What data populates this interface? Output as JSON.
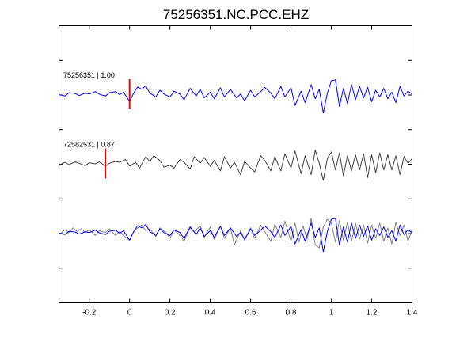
{
  "chart_data": {
    "type": "line",
    "title": "75256351.NC.PCC.EHZ",
    "xlabel": "",
    "ylabel": "",
    "xlim": [
      -0.35,
      1.4
    ],
    "x_ticks": [
      -0.2,
      0,
      0.2,
      0.4,
      0.6,
      0.8,
      1,
      1.2,
      1.4
    ],
    "x_tick_labels": [
      "-0.2",
      "0",
      "0.2",
      "0.4",
      "0.6",
      "0.8",
      "1",
      "1.2",
      "1.4"
    ],
    "y_tick_count": 7,
    "grid": false,
    "legend": "none",
    "traces": [
      {
        "label": "75256351 | 1.00",
        "color": "#0000ff",
        "pick_time": 0.0,
        "pick_color": "#ff0000",
        "x": [
          -0.35,
          -0.32,
          -0.3,
          -0.27,
          -0.25,
          -0.22,
          -0.2,
          -0.17,
          -0.15,
          -0.12,
          -0.1,
          -0.07,
          -0.05,
          -0.03,
          0,
          0.02,
          0.04,
          0.06,
          0.08,
          0.1,
          0.13,
          0.15,
          0.17,
          0.2,
          0.22,
          0.25,
          0.27,
          0.3,
          0.33,
          0.35,
          0.37,
          0.4,
          0.42,
          0.45,
          0.47,
          0.5,
          0.53,
          0.55,
          0.57,
          0.6,
          0.62,
          0.65,
          0.67,
          0.7,
          0.72,
          0.75,
          0.77,
          0.8,
          0.82,
          0.85,
          0.87,
          0.9,
          0.92,
          0.94,
          0.96,
          0.98,
          1,
          1.02,
          1.04,
          1.06,
          1.08,
          1.1,
          1.12,
          1.14,
          1.16,
          1.18,
          1.2,
          1.22,
          1.24,
          1.26,
          1.28,
          1.3,
          1.32,
          1.34,
          1.36,
          1.38,
          1.4
        ],
        "y": [
          0.02,
          -0.05,
          0.12,
          0.08,
          -0.03,
          0.1,
          0.05,
          0.18,
          0.04,
          -0.06,
          0.12,
          0.18,
          0.02,
          0.15,
          -0.35,
          0.1,
          0.42,
          0.3,
          0.48,
          0.1,
          -0.1,
          0.25,
          0.05,
          -0.1,
          0.2,
          0.05,
          -0.25,
          0.35,
          -0.05,
          0.3,
          -0.15,
          0.15,
          -0.2,
          0.38,
          -0.1,
          0.3,
          -0.15,
          0.05,
          -0.3,
          0.25,
          -0.1,
          0.18,
          0.4,
          0.1,
          -0.2,
          0.45,
          -0.1,
          0.38,
          -0.55,
          0.2,
          -0.4,
          0.55,
          -0.2,
          0.3,
          -0.95,
          0.1,
          0.75,
          0.8,
          -0.6,
          0.35,
          -0.45,
          0.55,
          -0.25,
          0.45,
          -0.15,
          0.4,
          -0.35,
          0.25,
          -0.1,
          0.35,
          -0.2,
          0.15,
          -0.4,
          0.45,
          -0.05,
          0.2,
          0.05
        ]
      },
      {
        "label": "72582531 | 0.87",
        "color": "#404040",
        "pick_time": -0.12,
        "pick_color": "#ff0000",
        "x": [
          -0.35,
          -0.32,
          -0.3,
          -0.27,
          -0.25,
          -0.22,
          -0.2,
          -0.17,
          -0.15,
          -0.12,
          -0.1,
          -0.07,
          -0.05,
          -0.02,
          0,
          0.03,
          0.05,
          0.08,
          0.1,
          0.12,
          0.15,
          0.17,
          0.2,
          0.22,
          0.25,
          0.27,
          0.3,
          0.32,
          0.35,
          0.37,
          0.4,
          0.42,
          0.45,
          0.47,
          0.5,
          0.52,
          0.55,
          0.57,
          0.6,
          0.62,
          0.65,
          0.67,
          0.7,
          0.72,
          0.75,
          0.77,
          0.8,
          0.82,
          0.85,
          0.87,
          0.9,
          0.92,
          0.94,
          0.96,
          0.98,
          1,
          1.02,
          1.04,
          1.06,
          1.08,
          1.1,
          1.12,
          1.14,
          1.16,
          1.18,
          1.2,
          1.22,
          1.24,
          1.26,
          1.28,
          1.3,
          1.32,
          1.34,
          1.36,
          1.38,
          1.4
        ],
        "y": [
          -0.05,
          0.1,
          -0.02,
          0.12,
          0.05,
          -0.08,
          0.08,
          0.02,
          0.12,
          -0.1,
          0.05,
          0.15,
          0.1,
          0.25,
          -0.1,
          0.1,
          -0.2,
          0.4,
          0.15,
          0.45,
          0.2,
          -0.15,
          -0.05,
          -0.2,
          0.25,
          0.1,
          -0.25,
          0.4,
          0.05,
          0.35,
          -0.1,
          0.2,
          -0.35,
          0.4,
          -0.2,
          0.1,
          -0.55,
          0.15,
          -0.2,
          -0.4,
          0.45,
          0.2,
          -0.35,
          0.4,
          -0.35,
          0.55,
          -0.2,
          0.7,
          -0.5,
          0.45,
          -0.55,
          0.75,
          0.05,
          -0.85,
          0.3,
          0.65,
          -0.3,
          0.6,
          -0.6,
          0.45,
          -0.35,
          0.5,
          -0.3,
          0.55,
          -0.7,
          0.5,
          -0.45,
          0.6,
          -0.3,
          0.5,
          -0.3,
          0.45,
          -0.55,
          0.4,
          0.05,
          0.3
        ]
      },
      {
        "label": "",
        "overlay": true,
        "series": [
          {
            "color": "#808080",
            "x": [
              -0.35,
              -0.32,
              -0.3,
              -0.28,
              -0.26,
              -0.24,
              -0.22,
              -0.2,
              -0.17,
              -0.15,
              -0.12,
              -0.1,
              -0.07,
              -0.05,
              -0.02,
              0,
              0.02,
              0.04,
              0.06,
              0.08,
              0.1,
              0.13,
              0.15,
              0.18,
              0.2,
              0.22,
              0.25,
              0.27,
              0.3,
              0.32,
              0.35,
              0.37,
              0.4,
              0.42,
              0.45,
              0.47,
              0.5,
              0.52,
              0.55,
              0.57,
              0.6,
              0.62,
              0.65,
              0.67,
              0.7,
              0.72,
              0.75,
              0.77,
              0.8,
              0.82,
              0.84,
              0.86,
              0.88,
              0.9,
              0.92,
              0.94,
              0.96,
              0.98,
              1,
              1.02,
              1.04,
              1.06,
              1.08,
              1.1,
              1.12,
              1.14,
              1.16,
              1.18,
              1.2,
              1.22,
              1.24,
              1.26,
              1.28,
              1.3,
              1.32,
              1.34,
              1.36,
              1.38,
              1.4
            ],
            "y": [
              -0.05,
              0.2,
              0.05,
              0.3,
              0.1,
              0.25,
              0.05,
              0.2,
              -0.1,
              0.15,
              0.05,
              0.25,
              -0.1,
              0.1,
              -0.2,
              -0.35,
              0.1,
              0.3,
              0.45,
              0.15,
              0.25,
              -0.15,
              0.3,
              0.05,
              -0.25,
              0.2,
              -0.1,
              -0.4,
              0.3,
              0.1,
              0.4,
              -0.2,
              0.35,
              -0.3,
              0.4,
              -0.25,
              0.3,
              -0.6,
              0.15,
              -0.35,
              0.3,
              -0.25,
              0.45,
              0.1,
              -0.4,
              0.5,
              -0.2,
              0.65,
              -0.4,
              0.55,
              -0.45,
              0.4,
              -0.3,
              0.8,
              -0.6,
              -0.75,
              0.35,
              0.75,
              0.55,
              -0.45,
              0.7,
              -0.35,
              0.6,
              -0.4,
              0.55,
              -0.3,
              0.45,
              -0.5,
              0.45,
              -0.25,
              0.55,
              -0.4,
              0.3,
              -0.55,
              0.6,
              -0.1,
              0.45,
              -0.4,
              0.2
            ]
          },
          {
            "color": "#0000ff",
            "x": [
              -0.35,
              -0.32,
              -0.3,
              -0.27,
              -0.25,
              -0.22,
              -0.2,
              -0.17,
              -0.15,
              -0.12,
              -0.1,
              -0.07,
              -0.05,
              -0.03,
              0,
              0.02,
              0.04,
              0.06,
              0.08,
              0.1,
              0.13,
              0.15,
              0.17,
              0.2,
              0.22,
              0.25,
              0.27,
              0.3,
              0.33,
              0.35,
              0.37,
              0.4,
              0.42,
              0.45,
              0.47,
              0.5,
              0.53,
              0.55,
              0.57,
              0.6,
              0.62,
              0.65,
              0.67,
              0.7,
              0.72,
              0.75,
              0.77,
              0.8,
              0.82,
              0.85,
              0.87,
              0.9,
              0.92,
              0.94,
              0.96,
              0.98,
              1,
              1.02,
              1.04,
              1.06,
              1.08,
              1.1,
              1.12,
              1.14,
              1.16,
              1.18,
              1.2,
              1.22,
              1.24,
              1.26,
              1.28,
              1.3,
              1.32,
              1.34,
              1.36,
              1.38,
              1.4
            ],
            "y": [
              0.02,
              -0.05,
              0.12,
              0.08,
              -0.03,
              0.1,
              0.05,
              0.18,
              0.04,
              -0.06,
              0.12,
              0.18,
              0.02,
              0.15,
              -0.35,
              0.1,
              0.42,
              0.3,
              0.48,
              0.1,
              -0.1,
              0.25,
              0.05,
              -0.1,
              0.2,
              0.05,
              -0.25,
              0.35,
              -0.05,
              0.3,
              -0.15,
              0.15,
              -0.2,
              0.38,
              -0.1,
              0.3,
              -0.15,
              0.05,
              -0.3,
              0.25,
              -0.1,
              0.18,
              0.4,
              0.1,
              -0.2,
              0.45,
              -0.1,
              0.38,
              -0.55,
              0.2,
              -0.4,
              0.55,
              -0.2,
              0.3,
              -0.95,
              0.1,
              0.75,
              0.8,
              -0.6,
              0.35,
              -0.45,
              0.55,
              -0.25,
              0.45,
              -0.15,
              0.4,
              -0.35,
              0.25,
              -0.1,
              0.35,
              -0.2,
              0.15,
              -0.4,
              0.45,
              -0.05,
              0.2,
              0.05
            ]
          }
        ]
      }
    ]
  }
}
